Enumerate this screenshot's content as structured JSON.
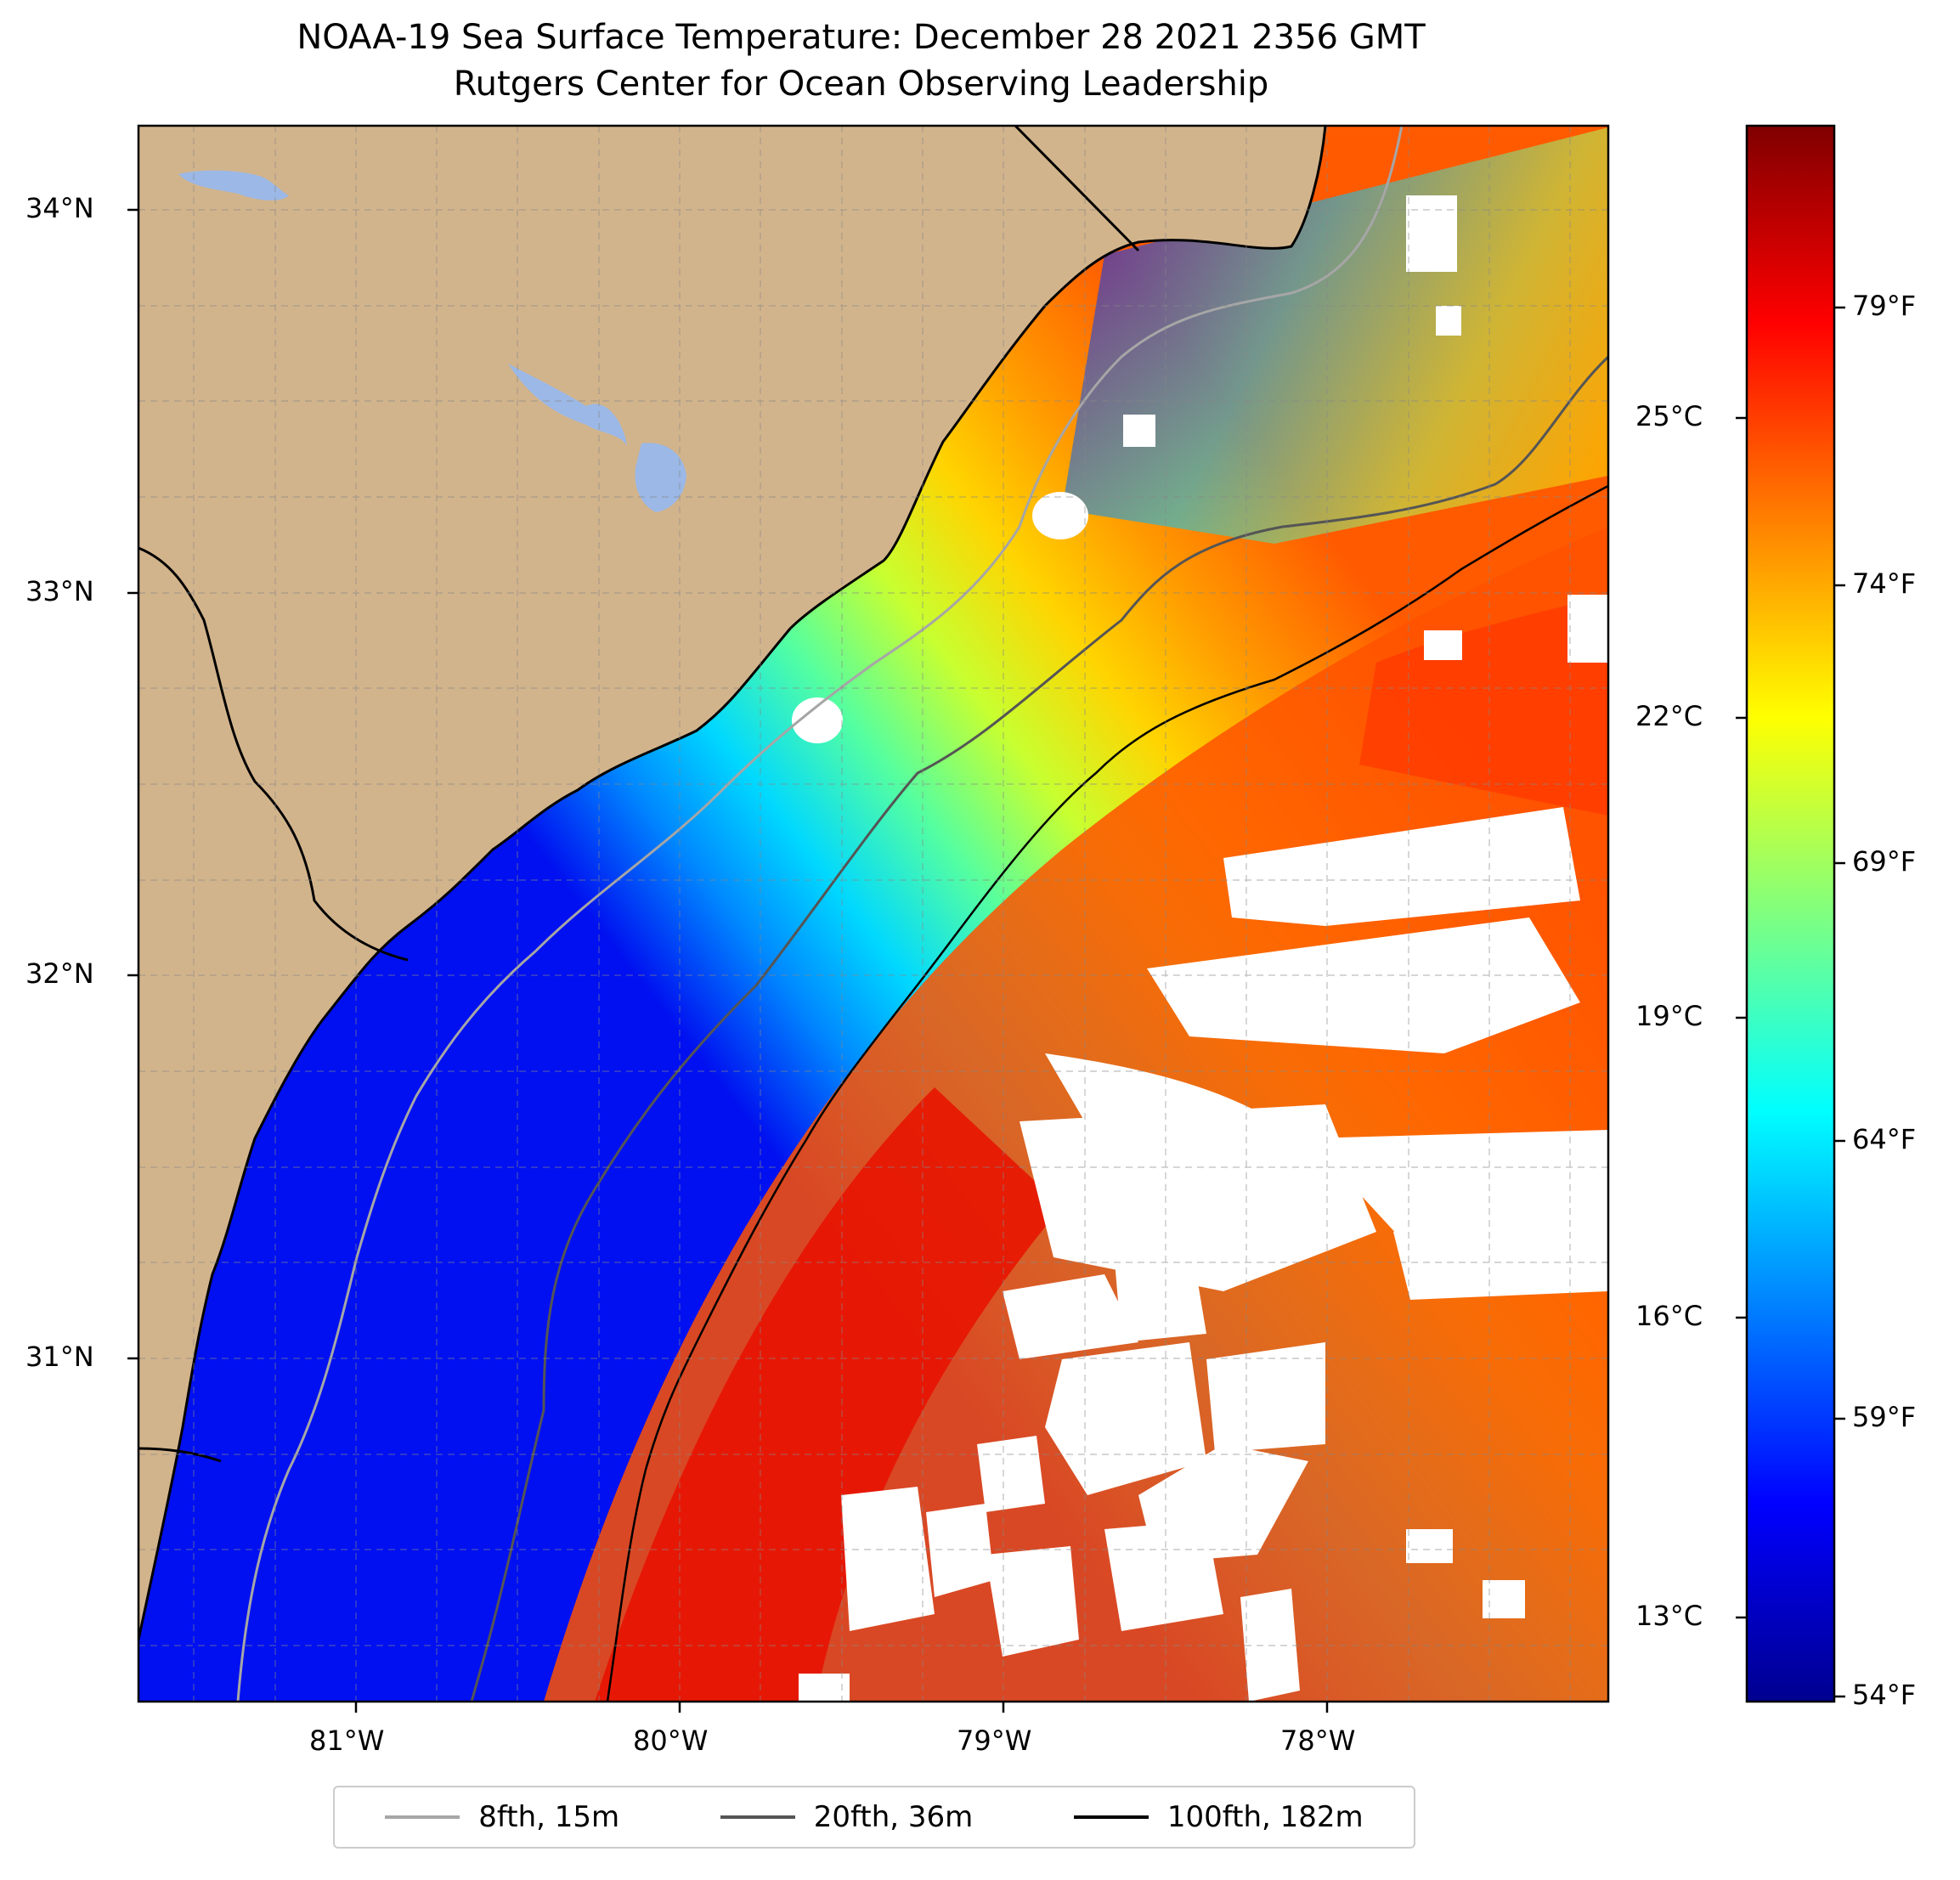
{
  "title": {
    "line1": "NOAA-19 Sea Surface Temperature: December 28 2021 2356 GMT",
    "line2": "Rutgers Center for Ocean Observing Leadership"
  },
  "axes": {
    "lon_labels": [
      "81°W",
      "80°W",
      "79°W",
      "78°W"
    ],
    "lat_labels": [
      "34°N",
      "33°N",
      "32°N",
      "31°N"
    ]
  },
  "colorbar": {
    "celsius_labels": [
      "25°C",
      "22°C",
      "19°C",
      "16°C",
      "13°C"
    ],
    "fahrenheit_labels": [
      "79°F",
      "74°F",
      "69°F",
      "64°F",
      "59°F",
      "54°F"
    ],
    "colormap": "jet",
    "range_f": [
      53.6,
      82.4
    ]
  },
  "legend": {
    "items": [
      {
        "label": "8fth, 15m",
        "color": "#a6a6a6"
      },
      {
        "label": "20fth, 36m",
        "color": "#555555"
      },
      {
        "label": "100fth, 182m",
        "color": "#000000"
      }
    ]
  },
  "colors": {
    "land": "#d2b48c",
    "lake": "#9bb8e6",
    "cloud": "#ffffff"
  }
}
